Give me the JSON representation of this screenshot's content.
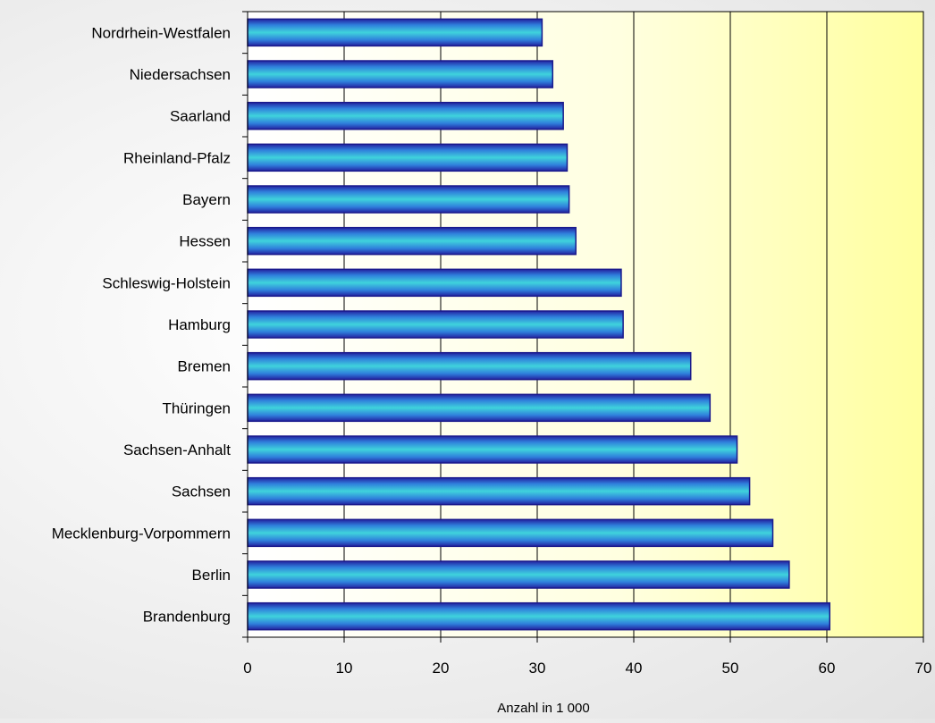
{
  "chart_data": {
    "type": "bar",
    "orientation": "horizontal",
    "categories": [
      "Nordrhein-Westfalen",
      "Niedersachsen",
      "Saarland",
      "Rheinland-Pfalz",
      "Bayern",
      "Hessen",
      "Schleswig-Holstein",
      "Hamburg",
      "Bremen",
      "Thüringen",
      "Sachsen-Anhalt",
      "Sachsen",
      "Mecklenburg-Vorpommern",
      "Berlin",
      "Brandenburg"
    ],
    "values": [
      30.5,
      31.6,
      32.7,
      33.1,
      33.3,
      34.0,
      38.7,
      38.9,
      45.9,
      47.9,
      50.7,
      52.0,
      54.4,
      56.1,
      60.3
    ],
    "xlabel": "Anzahl in 1 000",
    "xlim": [
      0,
      70
    ],
    "xticks": [
      "0",
      "10",
      "20",
      "30",
      "40",
      "50",
      "60",
      "70"
    ],
    "grid": "vertical",
    "colors": {
      "bar_edge": "#1a1a8c",
      "bar_dark": "#2323a0",
      "bar_mid": "#2f7fdc",
      "bar_light": "#3fd3dc",
      "plot_bg_left": "#ffffff",
      "plot_bg_right": "#ffff9e",
      "grid": "#000000"
    }
  }
}
